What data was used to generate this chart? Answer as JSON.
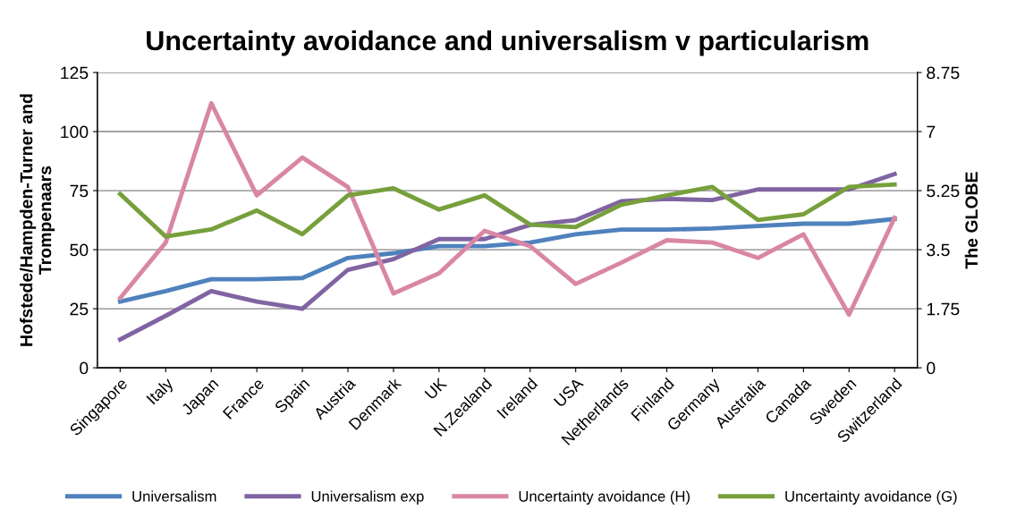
{
  "chart_data": {
    "type": "line",
    "title": "Uncertainty avoidance and universalism v particularism",
    "ylabel": "Hofstede/Hampden-Turner and\nTrompenaars",
    "y2label": "The GLOBE",
    "categories": [
      "Singapore",
      "Italy",
      "Japan",
      "France",
      "Spain",
      "Austria",
      "Denmark",
      "UK",
      "N.Zealand",
      "Ireland",
      "USA",
      "Netherlands",
      "Finland",
      "Germany",
      "Australia",
      "Canada",
      "Sweden",
      "Switzerland"
    ],
    "series": [
      {
        "name": "Universalism",
        "color": "#4f81bd",
        "values": [
          28,
          32.5,
          37.5,
          37.5,
          38,
          46.5,
          48.5,
          51.5,
          51.5,
          53,
          56.5,
          58.5,
          58.5,
          59,
          60,
          61,
          61,
          63
        ]
      },
      {
        "name": "Universalism exp",
        "color": "#8064a2",
        "values": [
          12,
          22,
          32.5,
          28,
          25,
          41.5,
          46,
          54.5,
          54.5,
          60.5,
          62.5,
          70.5,
          71.5,
          71,
          75.5,
          75.5,
          75.5,
          82
        ]
      },
      {
        "name": "Uncertainty avoidance (H)",
        "color": "#d986a5",
        "values": [
          29.5,
          53,
          112,
          73,
          89,
          76.5,
          31.5,
          40,
          58,
          51.5,
          35.5,
          44.5,
          54,
          53,
          46.5,
          56.5,
          22.5,
          63.5
        ]
      },
      {
        "name": "Uncertainty avoidance (G)",
        "color": "#77a03c",
        "axis": "y2",
        "values": [
          5.15,
          3.89,
          4.1,
          4.66,
          3.96,
          5.11,
          5.32,
          4.69,
          5.11,
          4.24,
          4.17,
          4.83,
          5.11,
          5.36,
          4.38,
          4.55,
          5.36,
          5.43
        ]
      }
    ],
    "ylim": [
      0,
      125
    ],
    "yticks": [
      0,
      25,
      50,
      75,
      100,
      125
    ],
    "y2lim": [
      0,
      8.75
    ],
    "y2ticks": [
      0,
      1.75,
      3.5,
      5.25,
      7,
      8.75
    ],
    "grid": "y",
    "legend": "bottom",
    "marker": "none",
    "line_style": "solid"
  }
}
